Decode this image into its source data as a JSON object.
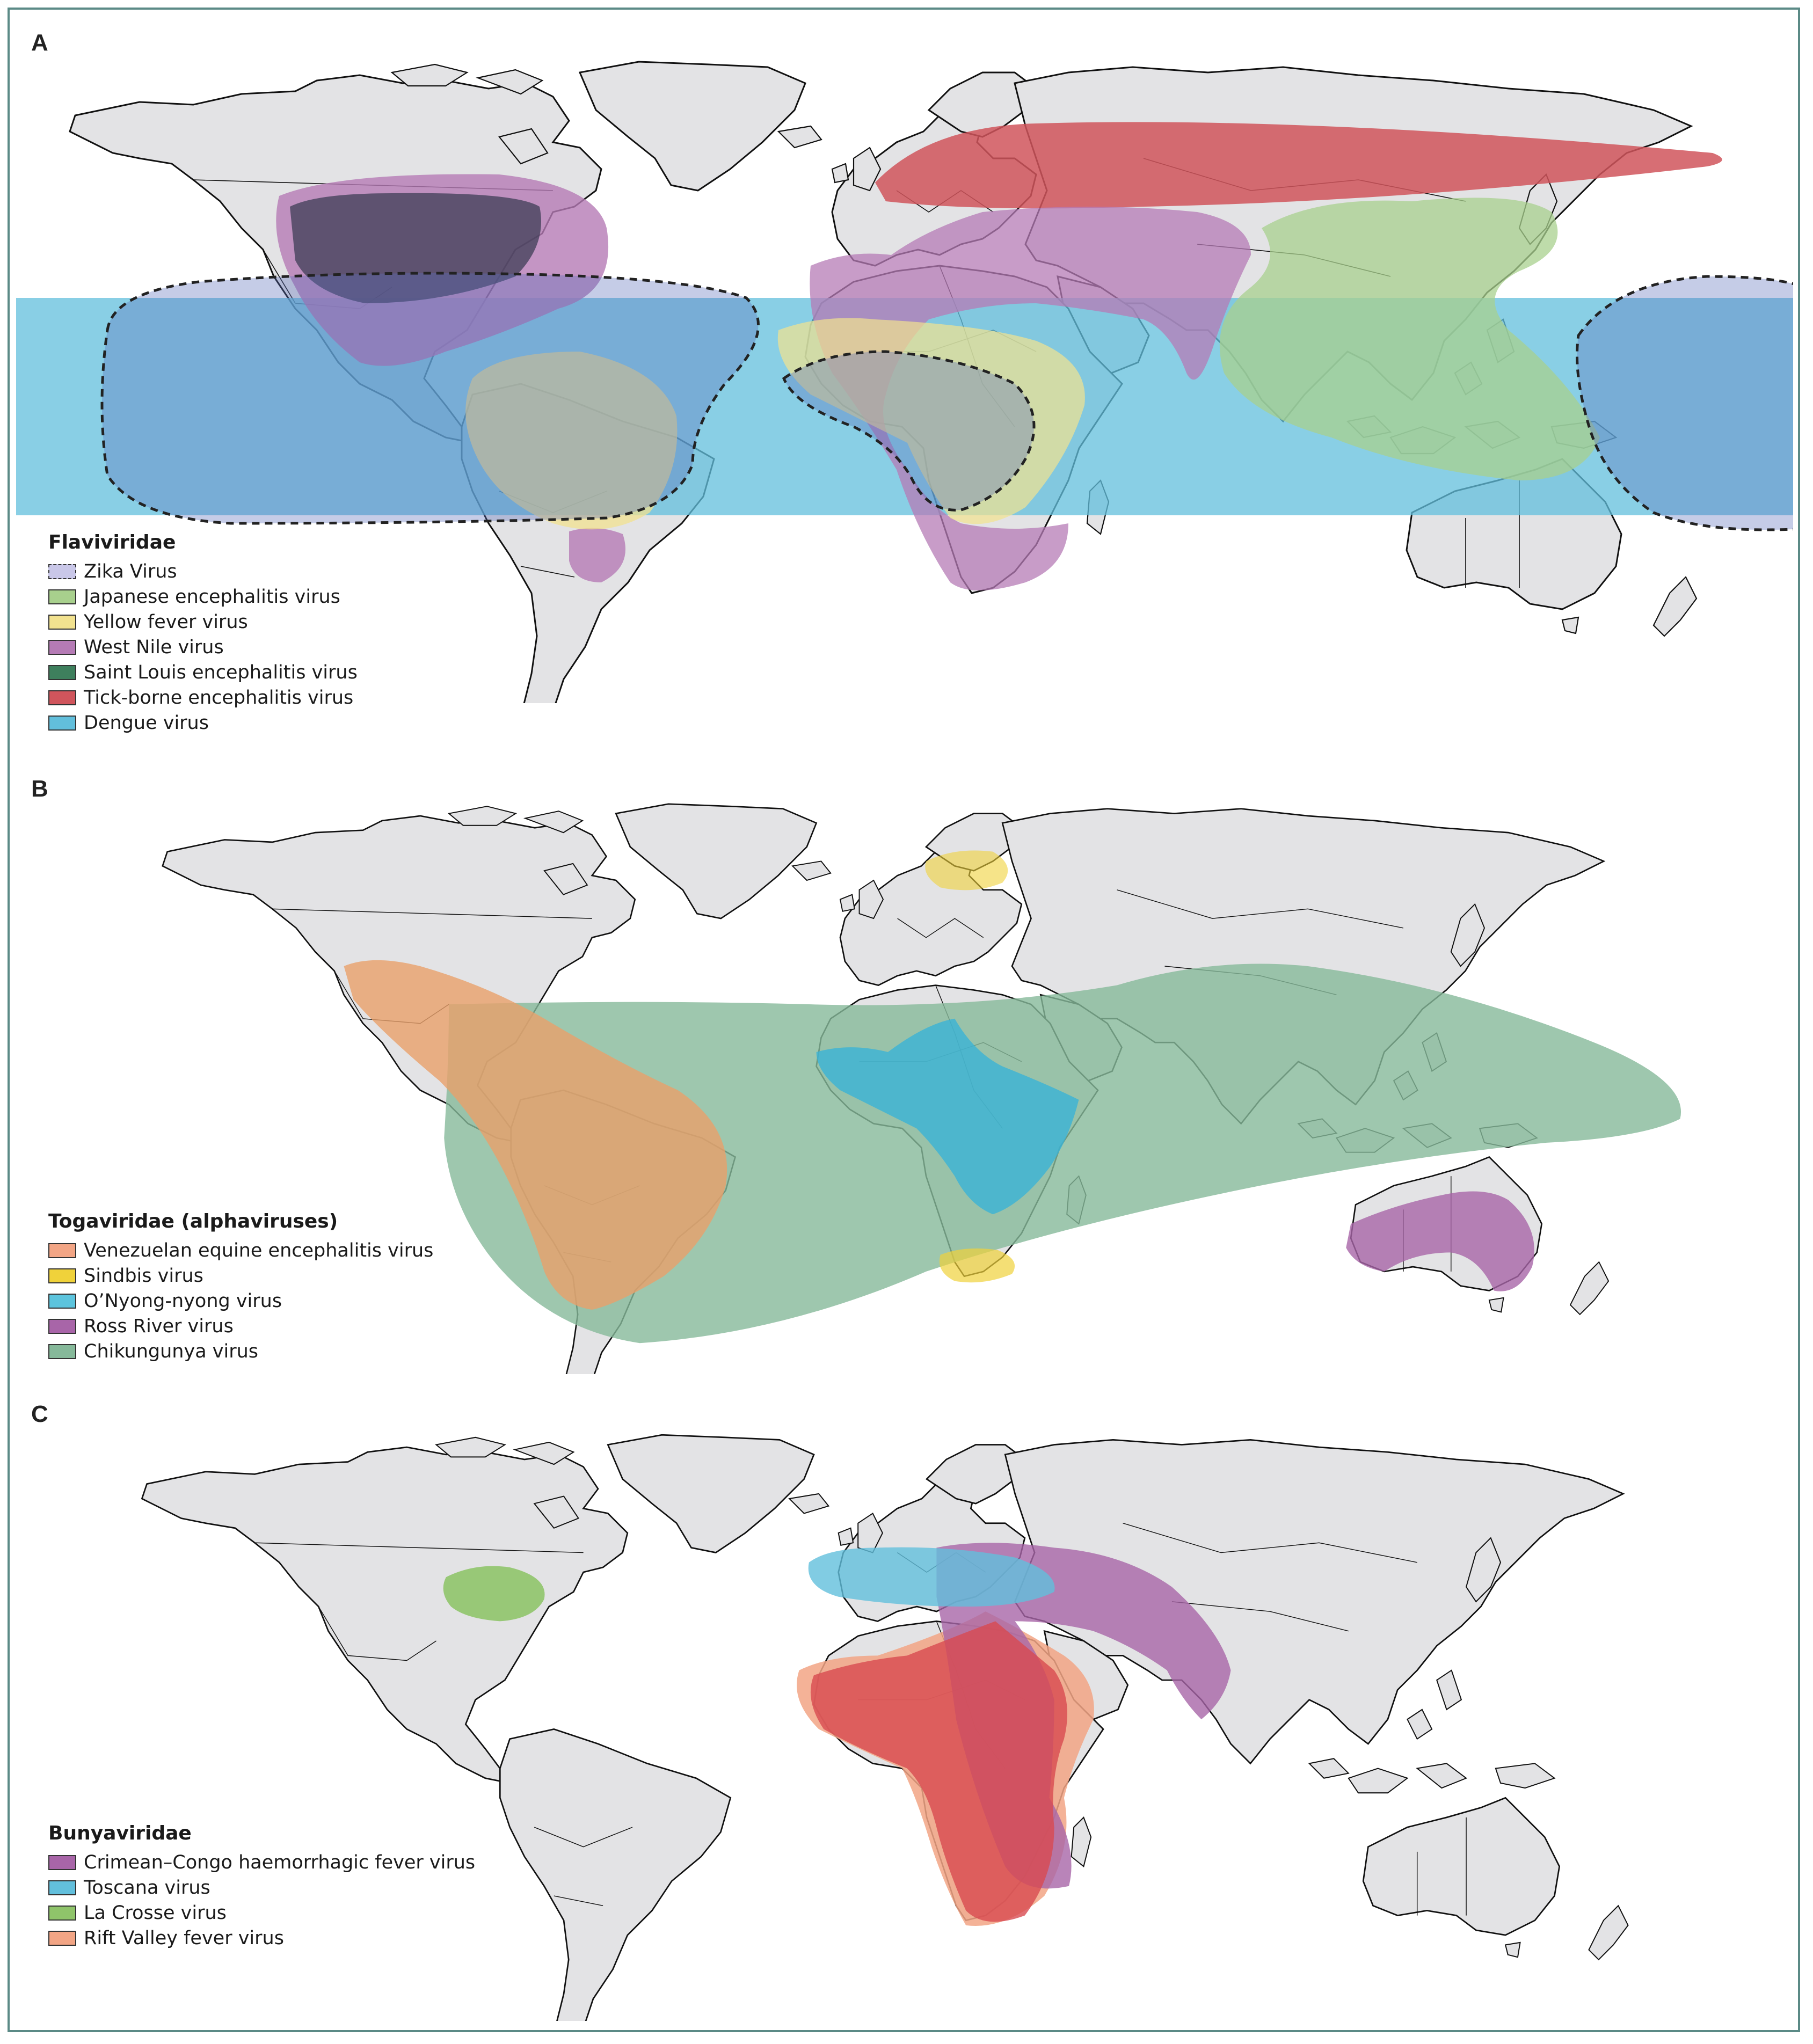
{
  "panels": [
    {
      "letter": "A",
      "legend_title": "Flaviviridae",
      "legend": [
        {
          "label": "Zika Virus",
          "color": "#c9c7e8",
          "dashed": true
        },
        {
          "label": "Japanese encephalitis virus",
          "color": "#a8d08d"
        },
        {
          "label": "Yellow fever virus",
          "color": "#f2e28f"
        },
        {
          "label": "West Nile virus",
          "color": "#b57bb5"
        },
        {
          "label": "Saint Louis encephalitis virus",
          "color": "#3e7f5d"
        },
        {
          "label": "Tick-borne encephalitis virus",
          "color": "#d0555c"
        },
        {
          "label": "Dengue virus",
          "color": "#62bfdc"
        }
      ]
    },
    {
      "letter": "B",
      "legend_title": "Togaviridae (alphaviruses)",
      "legend": [
        {
          "label": "Venezuelan equine encephalitis virus",
          "color": "#f2a585"
        },
        {
          "label": "Sindbis virus",
          "color": "#f0d23a"
        },
        {
          "label": "O’Nyong-nyong virus",
          "color": "#5cc4dd"
        },
        {
          "label": "Ross River virus",
          "color": "#a865a8"
        },
        {
          "label": "Chikungunya virus",
          "color": "#86b99a"
        }
      ]
    },
    {
      "letter": "C",
      "legend_title": "Bunyaviridae",
      "legend": [
        {
          "label": "Crimean–Congo haemorrhagic fever virus",
          "color": "#a865a8"
        },
        {
          "label": "Toscana virus",
          "color": "#62bfdc"
        },
        {
          "label": "La Crosse virus",
          "color": "#8fc46a"
        },
        {
          "label": "Rift Valley fever virus",
          "color": "#f2a585"
        }
      ]
    }
  ]
}
